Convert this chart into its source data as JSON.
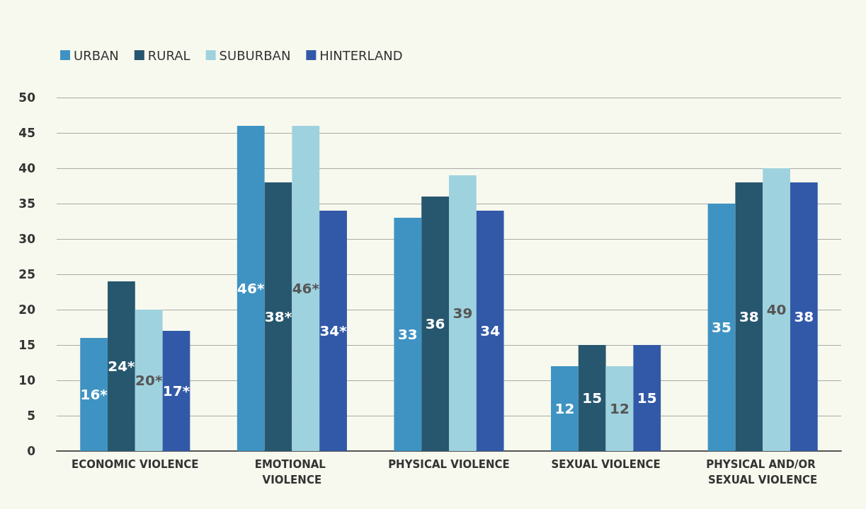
{
  "chart_data": {
    "type": "bar",
    "categories": [
      "ECONOMIC VIOLENCE",
      "EMOTIONAL VIOLENCE",
      "PHYSICAL VIOLENCE",
      "SEXUAL VIOLENCE",
      "PHYSICAL AND/OR SEXUAL VIOLENCE"
    ],
    "series": [
      {
        "name": "URBAN",
        "color": "#3f93c3",
        "values": [
          16,
          46,
          33,
          12,
          35
        ],
        "value_labels": [
          "16*",
          "46*",
          "33",
          "12",
          "35"
        ]
      },
      {
        "name": "RURAL",
        "color": "#27576f",
        "values": [
          24,
          38,
          36,
          15,
          38
        ],
        "value_labels": [
          "24*",
          "38*",
          "36",
          "15",
          "38"
        ]
      },
      {
        "name": "SUBURBAN",
        "color": "#9fd2df",
        "values": [
          20,
          46,
          39,
          12,
          40
        ],
        "value_labels": [
          "20*",
          "46*",
          "39",
          "12",
          "40"
        ]
      },
      {
        "name": "HINTERLAND",
        "color": "#3259a8",
        "values": [
          17,
          34,
          34,
          15,
          38
        ],
        "value_labels": [
          "17*",
          "34*",
          "34",
          "15",
          "38"
        ]
      }
    ],
    "ylim": [
      0,
      50
    ],
    "yticks": [
      0,
      5,
      10,
      15,
      20,
      25,
      30,
      35,
      40,
      45,
      50
    ],
    "grid": "y",
    "legend": "top left"
  }
}
